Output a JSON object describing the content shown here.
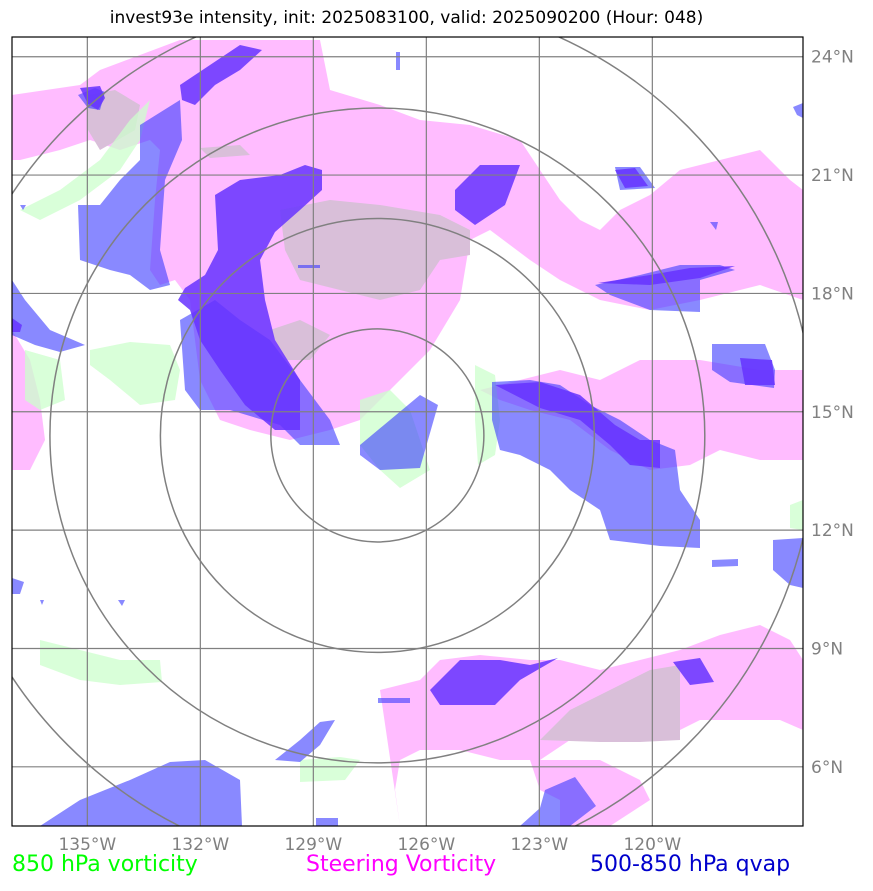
{
  "title": "invest93e intensity, init: 2025083100, valid: 2025090200 (Hour: 048)",
  "map": {
    "lon_range": [
      -137,
      -116
    ],
    "lat_range": [
      4.5,
      24.5
    ],
    "center": {
      "lon": -127.3,
      "lat": 14.4
    },
    "ring_radii_deg": [
      2.7,
      5.5,
      8.3,
      11.1
    ],
    "lon_ticks": [
      -135,
      -132,
      -129,
      -126,
      -123,
      -120
    ],
    "lat_ticks": [
      6,
      9,
      12,
      15,
      18,
      21,
      24
    ],
    "lon_tick_labels": [
      "135°W",
      "132°W",
      "129°W",
      "126°W",
      "123°W",
      "120°W"
    ],
    "lat_tick_labels": [
      "6°N",
      "9°N",
      "12°N",
      "15°N",
      "18°N",
      "21°N",
      "24°N"
    ],
    "grid": true
  },
  "colors": {
    "vort850": "#ccffcc",
    "steering": "#ffa6ff",
    "qvap": "#3b3bff",
    "grid": "#808080",
    "ring": "#808080"
  },
  "legend": {
    "vort850": {
      "label": "850 hPa vorticity",
      "color": "#00ff00"
    },
    "steering": {
      "label": "Steering Vorticity",
      "color": "#ff00ff"
    },
    "qvap": {
      "label": "500-850 hPa qvap",
      "color": "#0000cc"
    }
  }
}
